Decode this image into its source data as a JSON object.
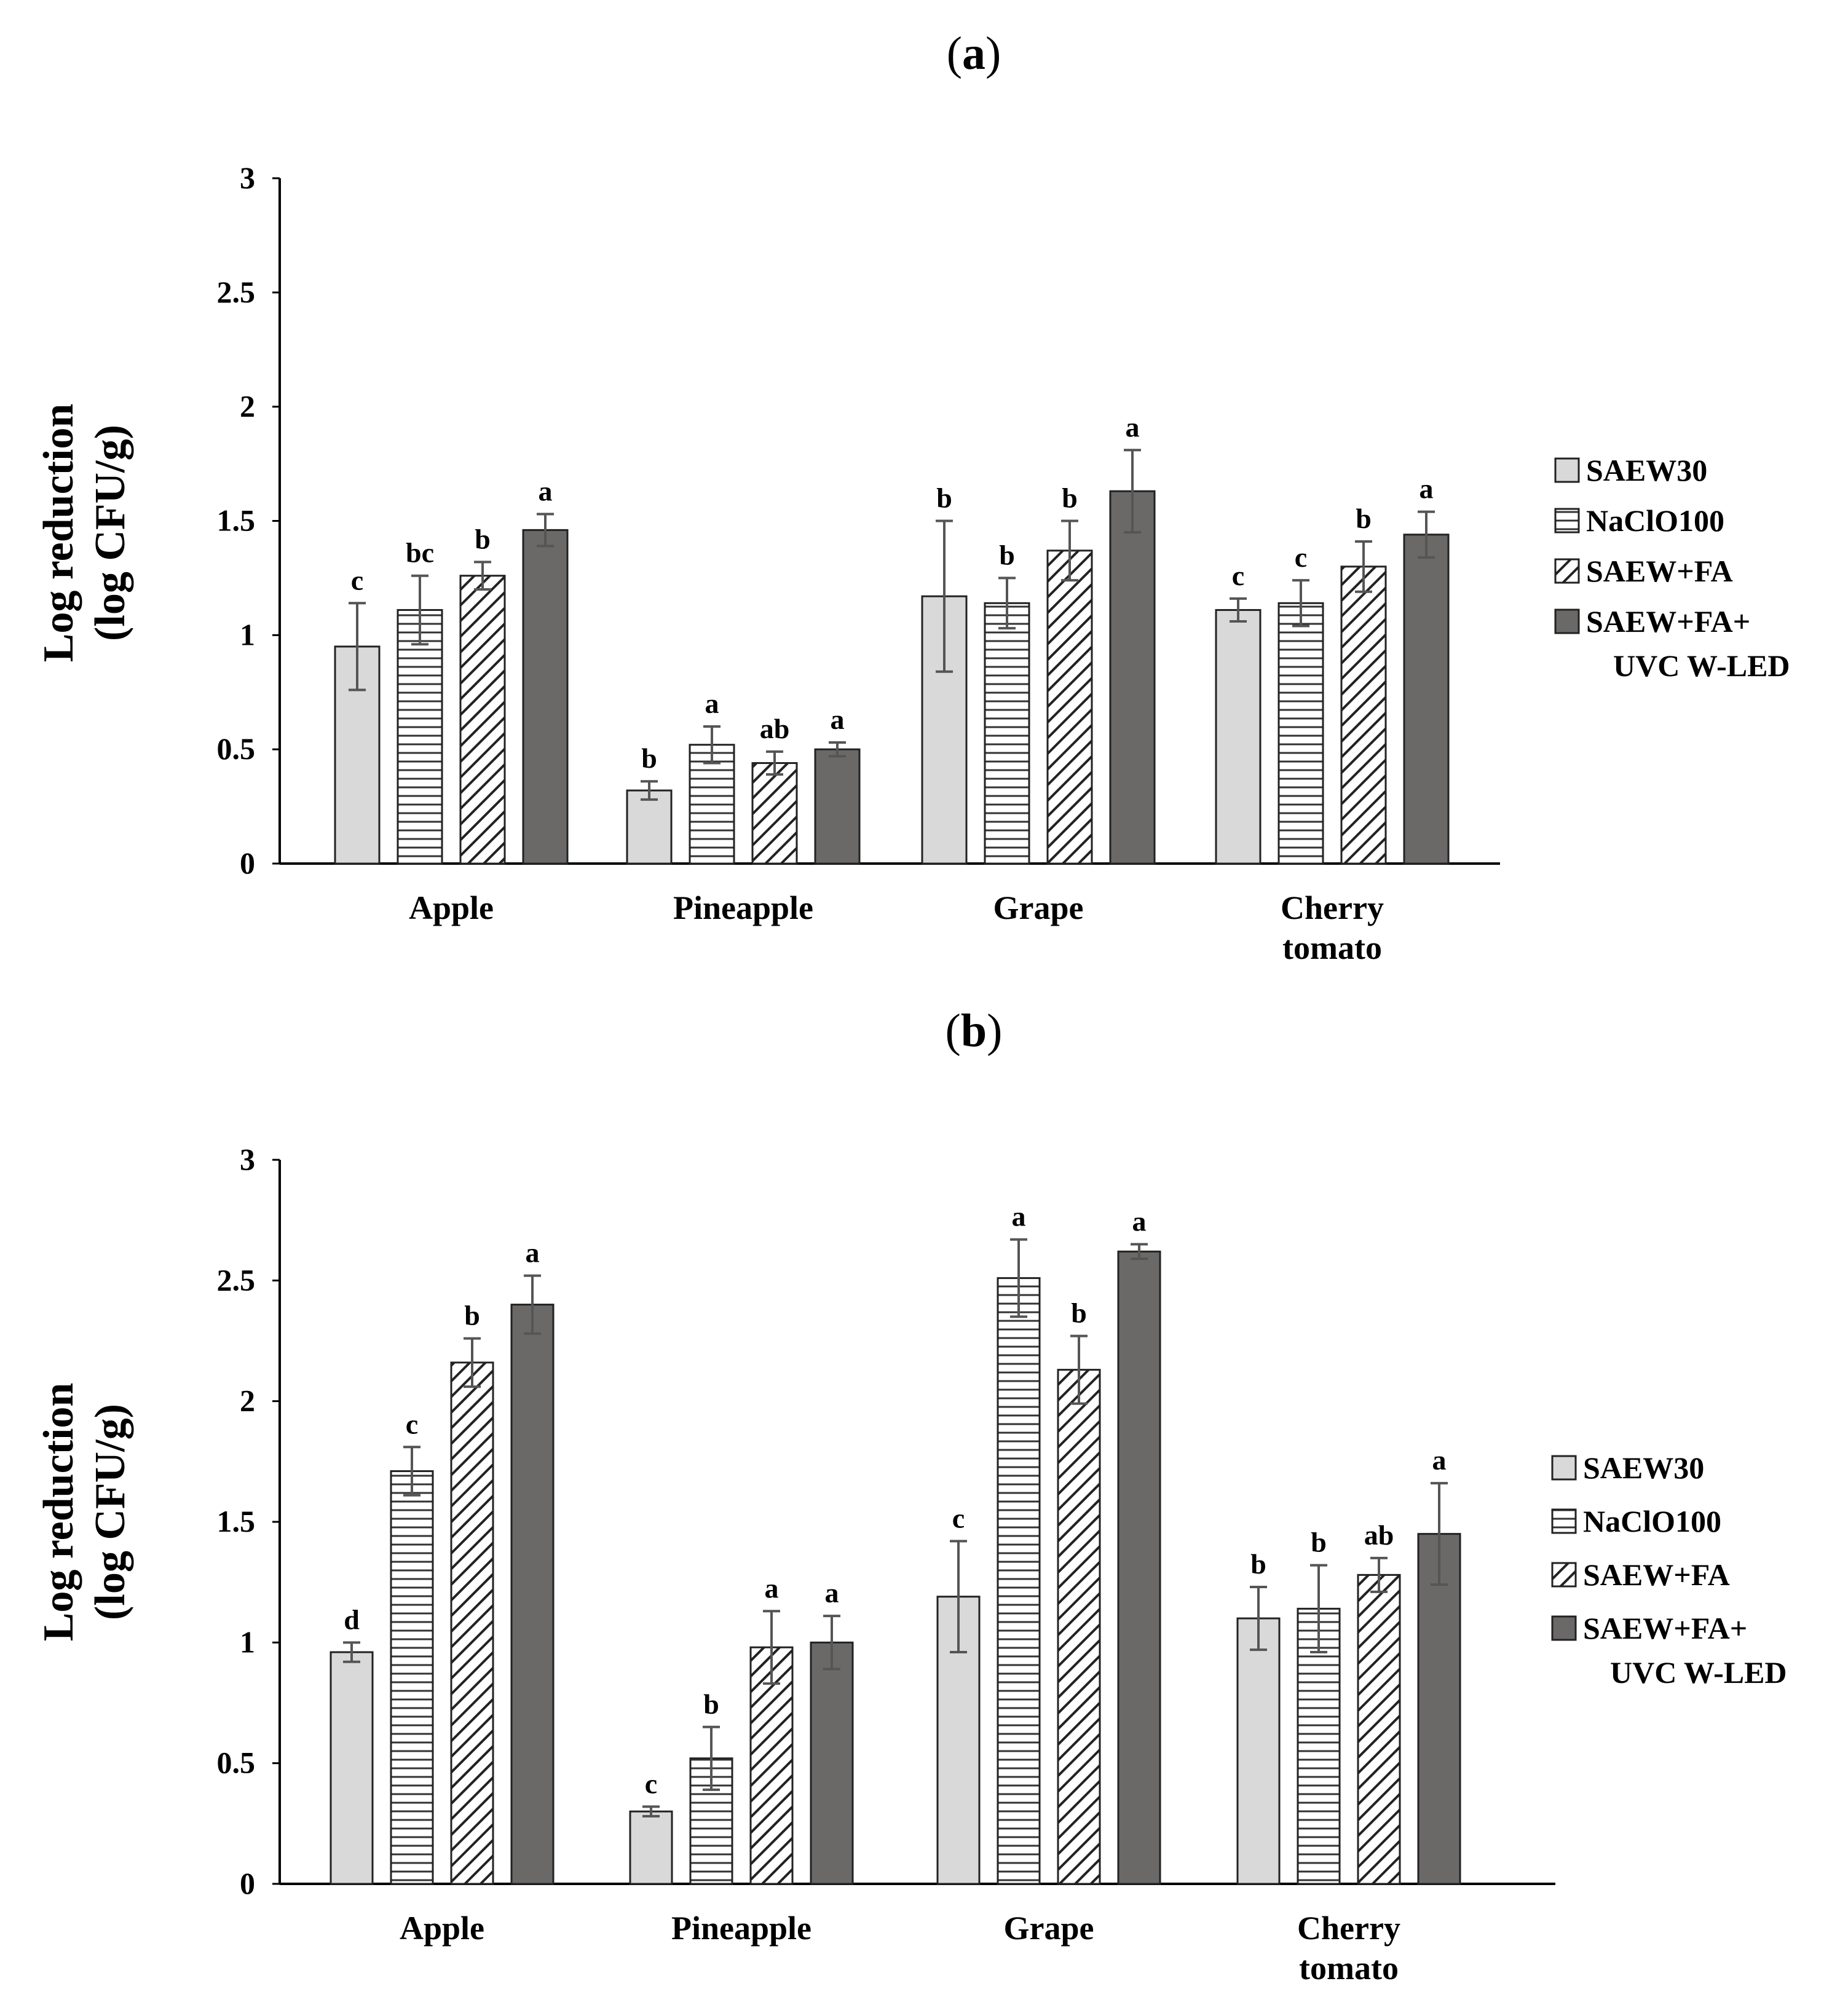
{
  "colors": {
    "SAEW30": "#d9d9d9",
    "NaClO100": "#ffffff",
    "SAEW+FA": "#ffffff",
    "SAEW+FA+UVC W-LED": "#6b6868",
    "axis": "#000000",
    "error_bar": "#555555"
  },
  "chart_data": [
    {
      "type": "bar",
      "panel_label_open": "(",
      "panel_label_letter": "a",
      "panel_label_close": ")",
      "ylabel_line1": "Log reduction",
      "ylabel_line2": "(log CFU/g)",
      "xlabel": "",
      "ylim": [
        0,
        3
      ],
      "yticks": [
        "0",
        "0.5",
        "1",
        "1.5",
        "2",
        "2.5",
        "3"
      ],
      "grid": false,
      "legend_position": "right",
      "categories": [
        {
          "line1": "Apple",
          "line2": ""
        },
        {
          "line1": "Pineapple",
          "line2": ""
        },
        {
          "line1": "Grape",
          "line2": ""
        },
        {
          "line1": "Cherry",
          "line2": "tomato"
        }
      ],
      "series": [
        {
          "name": "SAEW30",
          "legend_line1": "SAEW30",
          "legend_line2": "",
          "pattern": "solid-light",
          "values": [
            0.95,
            0.32,
            1.17,
            1.11
          ],
          "errors": [
            0.19,
            0.04,
            0.33,
            0.05
          ],
          "letters": [
            "c",
            "b",
            "b",
            "c"
          ]
        },
        {
          "name": "NaClO100",
          "legend_line1": "NaClO100",
          "legend_line2": "",
          "pattern": "horizontal-lines",
          "values": [
            1.11,
            0.52,
            1.14,
            1.14
          ],
          "errors": [
            0.15,
            0.08,
            0.11,
            0.1
          ],
          "letters": [
            "bc",
            "a",
            "b",
            "c"
          ]
        },
        {
          "name": "SAEW+FA",
          "legend_line1": "SAEW+FA",
          "legend_line2": "",
          "pattern": "diagonal-lines",
          "values": [
            1.26,
            0.44,
            1.37,
            1.3
          ],
          "errors": [
            0.06,
            0.05,
            0.13,
            0.11
          ],
          "letters": [
            "b",
            "ab",
            "b",
            "b"
          ]
        },
        {
          "name": "SAEW+FA+UVC W-LED",
          "legend_line1": "SAEW+FA+",
          "legend_line2": "UVC W-LED",
          "pattern": "solid-dark",
          "values": [
            1.46,
            0.5,
            1.63,
            1.44
          ],
          "errors": [
            0.07,
            0.03,
            0.18,
            0.1
          ],
          "letters": [
            "a",
            "a",
            "a",
            "a"
          ]
        }
      ]
    },
    {
      "type": "bar",
      "panel_label_open": "(",
      "panel_label_letter": "b",
      "panel_label_close": ")",
      "ylabel_line1": "Log reduction",
      "ylabel_line2": "(log CFU/g)",
      "xlabel": "",
      "ylim": [
        0,
        3
      ],
      "yticks": [
        "0",
        "0.5",
        "1",
        "1.5",
        "2",
        "2.5",
        "3"
      ],
      "grid": false,
      "legend_position": "right",
      "categories": [
        {
          "line1": "Apple",
          "line2": ""
        },
        {
          "line1": "Pineapple",
          "line2": ""
        },
        {
          "line1": "Grape",
          "line2": ""
        },
        {
          "line1": "Cherry",
          "line2": "tomato"
        }
      ],
      "series": [
        {
          "name": "SAEW30",
          "legend_line1": "SAEW30",
          "legend_line2": "",
          "pattern": "solid-light",
          "values": [
            0.96,
            0.3,
            1.19,
            1.1
          ],
          "errors": [
            0.04,
            0.02,
            0.23,
            0.13
          ],
          "letters": [
            "d",
            "c",
            "c",
            "b"
          ]
        },
        {
          "name": "NaClO100",
          "legend_line1": "NaClO100",
          "legend_line2": "",
          "pattern": "horizontal-lines",
          "values": [
            1.71,
            0.52,
            2.51,
            1.14
          ],
          "errors": [
            0.1,
            0.13,
            0.16,
            0.18
          ],
          "letters": [
            "c",
            "b",
            "a",
            "b"
          ]
        },
        {
          "name": "SAEW+FA",
          "legend_line1": "SAEW+FA",
          "legend_line2": "",
          "pattern": "diagonal-lines",
          "values": [
            2.16,
            0.98,
            2.13,
            1.28
          ],
          "errors": [
            0.1,
            0.15,
            0.14,
            0.07
          ],
          "letters": [
            "b",
            "a",
            "b",
            "ab"
          ]
        },
        {
          "name": "SAEW+FA+UVC W-LED",
          "legend_line1": "SAEW+FA+",
          "legend_line2": "UVC W-LED",
          "pattern": "solid-dark",
          "values": [
            2.4,
            1.0,
            2.62,
            1.45
          ],
          "errors": [
            0.12,
            0.11,
            0.03,
            0.21
          ],
          "letters": [
            "a",
            "a",
            "a",
            "a"
          ]
        }
      ]
    }
  ]
}
